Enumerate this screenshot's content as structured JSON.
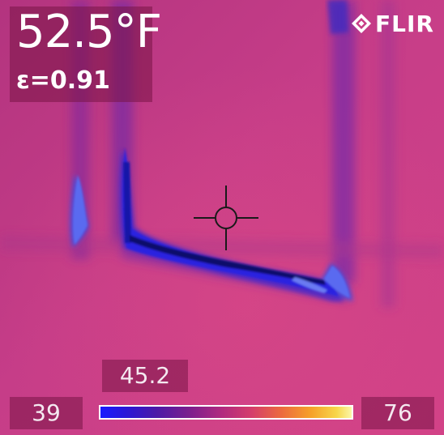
{
  "readout": {
    "temperature": "52.5°F",
    "emissivity": "ε=0.91"
  },
  "brand": {
    "name": "FLIR",
    "icon": "flir-logo-icon"
  },
  "spot_meter": {
    "icon": "crosshair-icon",
    "value": "45.2"
  },
  "scale": {
    "min": "39",
    "max": "76",
    "palette": "ironbow"
  },
  "colors": {
    "background": "#c83d86",
    "cold_spot": "#1e24d8",
    "panel": "#78144690"
  }
}
